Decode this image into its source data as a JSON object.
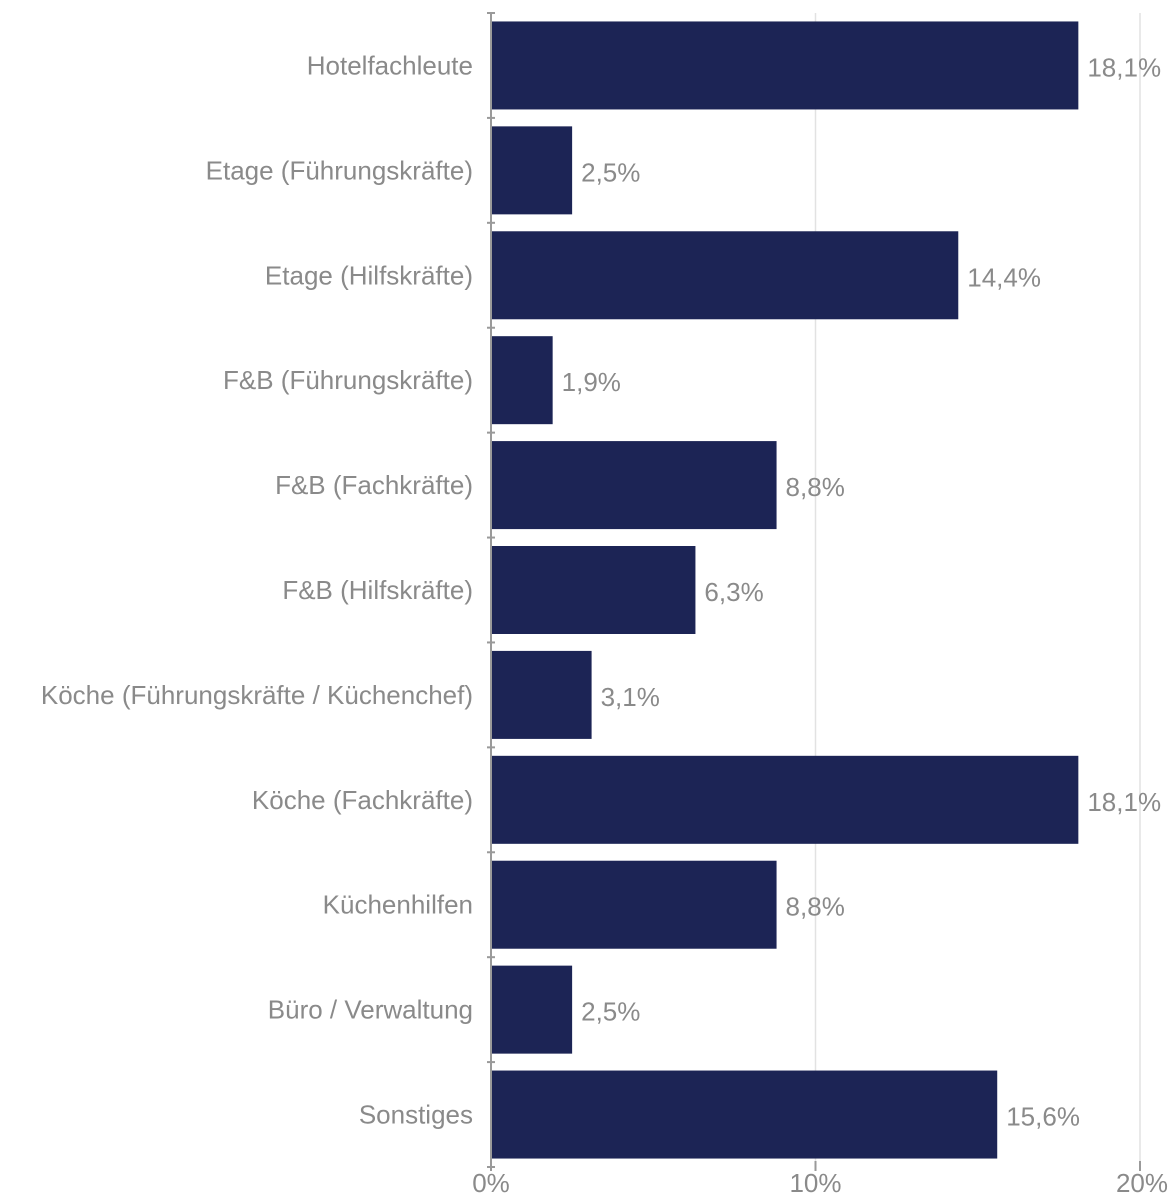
{
  "chart_data": {
    "type": "bar",
    "orientation": "horizontal",
    "categories": [
      "Hotelfachleute",
      "Etage (Führungskräfte)",
      "Etage (Hilfskräfte)",
      "F&B (Führungskräfte)",
      "F&B (Fachkräfte)",
      "F&B (Hilfskräfte)",
      "Köche (Führungskräfte / Küchenchef)",
      "Köche (Fachkräfte)",
      "Küchenhilfen",
      "Büro / Verwaltung",
      "Sonstiges"
    ],
    "values": [
      18.1,
      2.5,
      14.4,
      1.9,
      8.8,
      6.3,
      3.1,
      18.1,
      8.8,
      2.5,
      15.6
    ],
    "value_labels": [
      "18,1%",
      "2,5%",
      "14,4%",
      "1,9%",
      "8,8%",
      "6,3%",
      "3,1%",
      "18,1%",
      "8,8%",
      "2,5%",
      "15,6%"
    ],
    "xlim": [
      0,
      20
    ],
    "x_ticks": [
      0,
      10,
      20
    ],
    "x_tick_labels": [
      "0%",
      "10%",
      "20%"
    ],
    "grid": true,
    "bar_color": "#1c2455",
    "text_color": "#8a8a8a",
    "grid_color": "#e2e2e2",
    "axis_color": "#9a9a9a"
  }
}
